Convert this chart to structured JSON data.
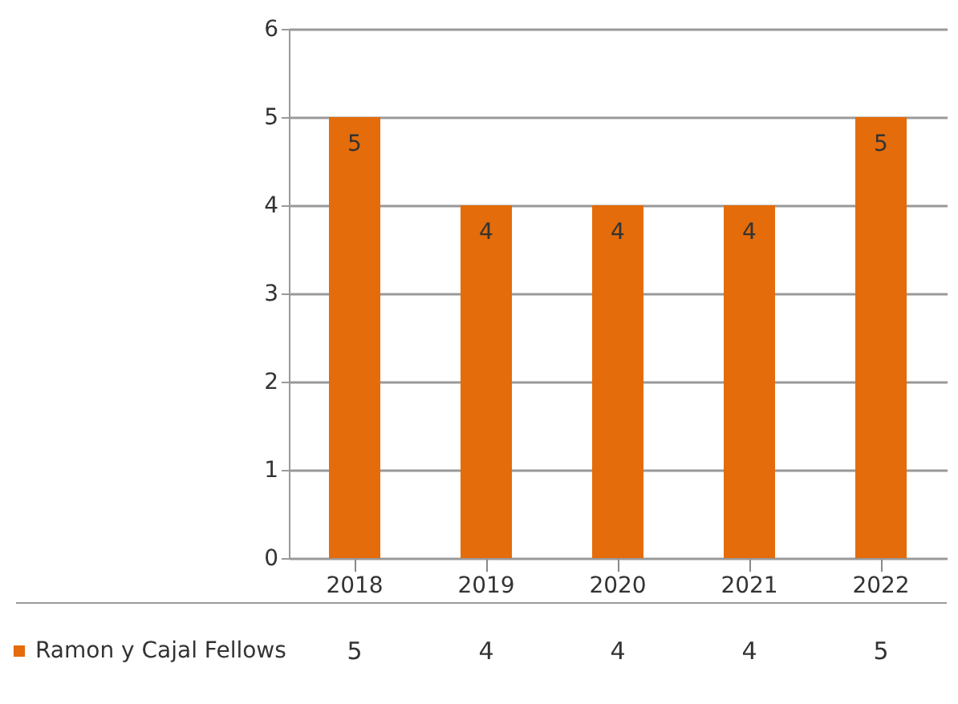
{
  "chart_data": {
    "type": "bar",
    "categories": [
      "2018",
      "2019",
      "2020",
      "2021",
      "2022"
    ],
    "series": [
      {
        "name": "Ramon y Cajal Fellows",
        "color": "#e46c0a",
        "values": [
          5,
          4,
          4,
          4,
          5
        ]
      }
    ],
    "annotations": [
      "5",
      "4",
      "4",
      "4",
      "5"
    ],
    "ylim": [
      0,
      6
    ],
    "yticks": [
      0,
      1,
      2,
      3,
      4,
      5,
      6
    ],
    "grid": "y",
    "legend": "bottom left",
    "data_labels": true
  }
}
